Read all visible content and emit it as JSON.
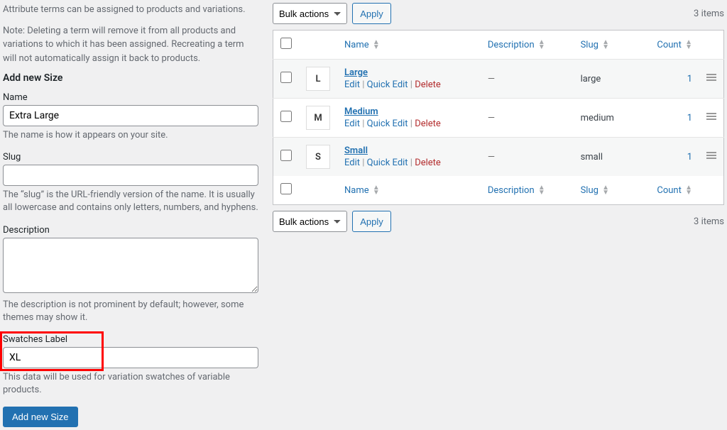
{
  "intro": {
    "line1": "Attribute terms can be assigned to products and variations.",
    "line2": "Note: Deleting a term will remove it from all products and variations to which it has been assigned. Recreating a term will not automatically assign it back to products."
  },
  "form": {
    "heading": "Add new Size",
    "name": {
      "label": "Name",
      "value": "Extra Large",
      "help": "The name is how it appears on your site."
    },
    "slug": {
      "label": "Slug",
      "value": "",
      "help": "The “slug” is the URL-friendly version of the name. It is usually all lowercase and contains only letters, numbers, and hyphens."
    },
    "description": {
      "label": "Description",
      "value": "",
      "help": "The description is not prominent by default; however, some themes may show it."
    },
    "swatches": {
      "label": "Swatches Label",
      "value": "XL",
      "help": "This data will be used for variation swatches of variable products."
    },
    "submit": "Add new Size"
  },
  "table": {
    "bulk_label": "Bulk actions",
    "apply_label": "Apply",
    "item_count": "3 items",
    "headers": {
      "name": "Name",
      "description": "Description",
      "slug": "Slug",
      "count": "Count"
    },
    "row_actions": {
      "edit": "Edit",
      "quick_edit": "Quick Edit",
      "delete": "Delete"
    },
    "rows": [
      {
        "thumb": "L",
        "name": "Large",
        "description": "—",
        "slug": "large",
        "count": "1"
      },
      {
        "thumb": "M",
        "name": "Medium",
        "description": "—",
        "slug": "medium",
        "count": "1"
      },
      {
        "thumb": "S",
        "name": "Small",
        "description": "—",
        "slug": "small",
        "count": "1"
      }
    ]
  },
  "highlight": {
    "color": "#ff0000"
  }
}
